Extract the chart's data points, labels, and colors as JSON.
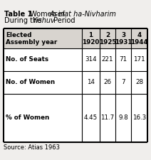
{
  "title_bold": "Table 1",
  "title_rest_line1": "  Women in ",
  "title_italic1": "Asefat ha-Nivharim",
  "title_line2_normal": "During the ",
  "title_line2_italic": "Yishuv",
  "title_line2_end": " Period",
  "col_headers_top": [
    "1",
    "2",
    "3",
    "4"
  ],
  "col_headers_bot": [
    "1920",
    "1925",
    "1931",
    "1944"
  ],
  "row_labels": [
    "Elected\nAssembly year",
    "No. of Seats",
    "No. of Women",
    "% of Women"
  ],
  "data": [
    [
      "314",
      "221",
      "71",
      "171"
    ],
    [
      "14",
      "26",
      "7",
      "28"
    ],
    [
      "4.45",
      "11.7",
      "9.8",
      "16.3"
    ]
  ],
  "source": "Source: Atias 1963",
  "fig_bg": "#f0eeec",
  "table_bg": "#ffffff",
  "header_bg": "#d8d4cf"
}
